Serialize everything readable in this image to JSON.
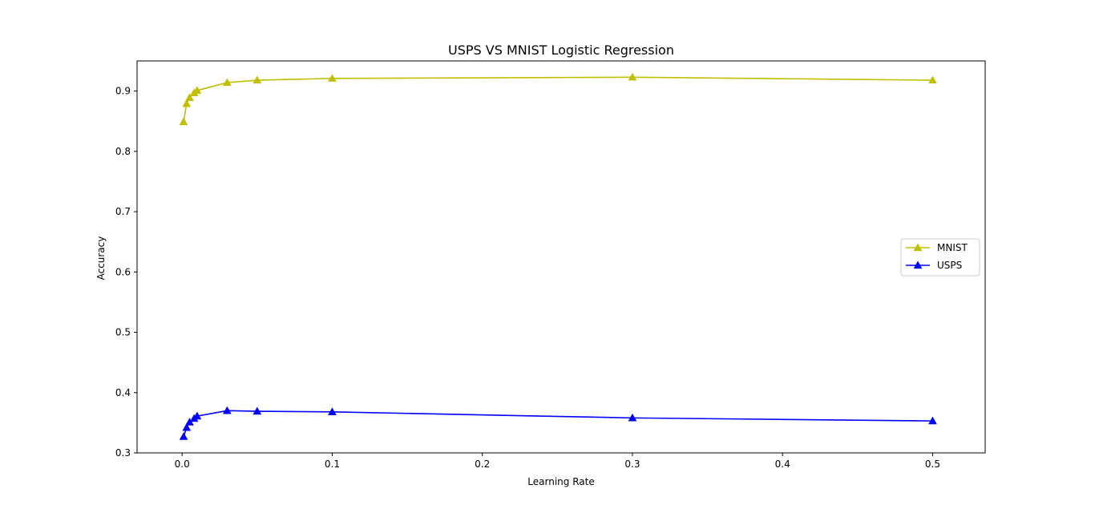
{
  "chart_data": {
    "type": "line",
    "title": "USPS VS MNIST Logistic Regression",
    "xlabel": "Learning Rate",
    "ylabel": "Accuracy",
    "xlim": [
      -0.03,
      0.535
    ],
    "ylim": [
      0.3,
      0.95
    ],
    "xticks": [
      0.0,
      0.1,
      0.2,
      0.3,
      0.4,
      0.5
    ],
    "xtick_labels": [
      "0.0",
      "0.1",
      "0.2",
      "0.3",
      "0.4",
      "0.5"
    ],
    "yticks": [
      0.3,
      0.4,
      0.5,
      0.6,
      0.7,
      0.8,
      0.9
    ],
    "ytick_labels": [
      "0.3",
      "0.4",
      "0.5",
      "0.6",
      "0.7",
      "0.8",
      "0.9"
    ],
    "grid": false,
    "legend_position": "center-right",
    "x": [
      0.001,
      0.003,
      0.005,
      0.008,
      0.01,
      0.03,
      0.05,
      0.1,
      0.3,
      0.5
    ],
    "series": [
      {
        "name": "MNIST",
        "color": "#bfbf00",
        "marker": "triangle",
        "values": [
          0.849,
          0.879,
          0.889,
          0.897,
          0.901,
          0.914,
          0.918,
          0.921,
          0.923,
          0.918
        ]
      },
      {
        "name": "USPS",
        "color": "#0000ff",
        "marker": "triangle",
        "values": [
          0.327,
          0.342,
          0.351,
          0.357,
          0.361,
          0.37,
          0.369,
          0.368,
          0.358,
          0.353
        ]
      }
    ]
  }
}
